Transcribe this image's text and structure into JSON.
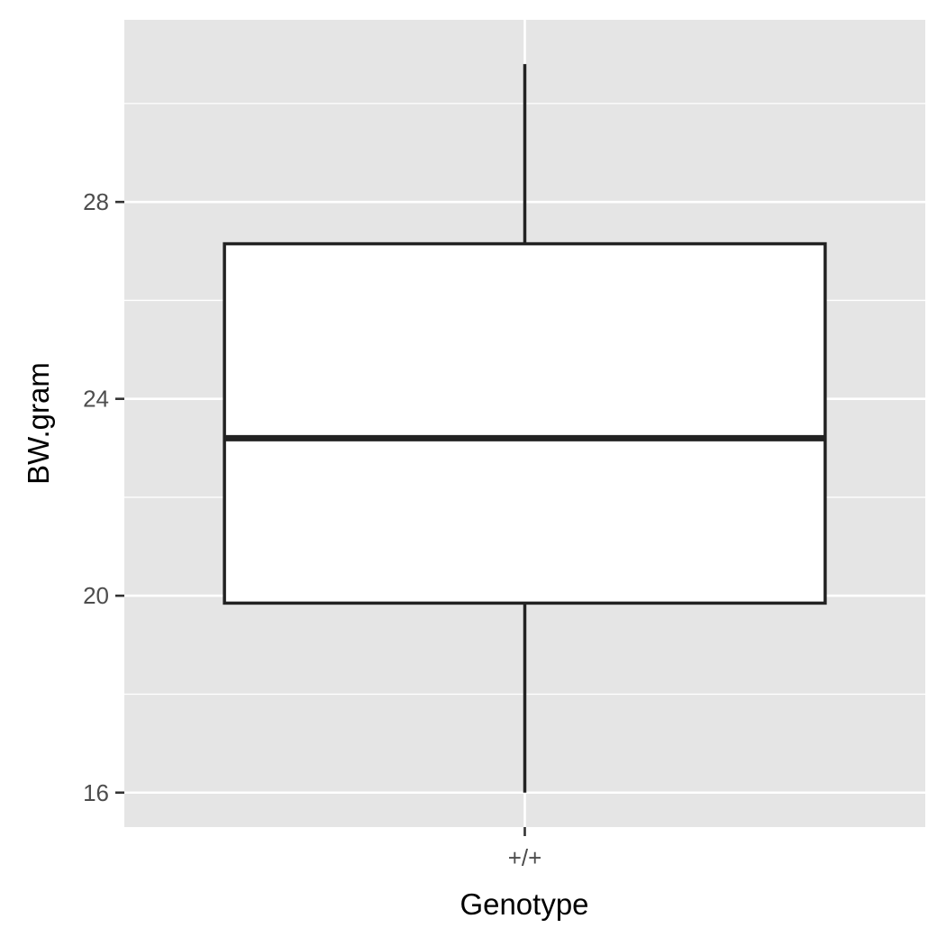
{
  "chart_data": {
    "type": "box",
    "title": "",
    "xlabel": "Genotype",
    "ylabel": "BW.gram",
    "categories": [
      "+/+"
    ],
    "boxes": [
      {
        "category": "+/+",
        "min": 16.0,
        "q1": 19.85,
        "median": 23.2,
        "q3": 27.15,
        "max": 30.8
      }
    ],
    "y_ticks": [
      16,
      20,
      24,
      28
    ],
    "y_tick_labels": [
      "16",
      "20",
      "24",
      "28"
    ],
    "ylim": [
      15.3,
      31.7
    ],
    "grid": true,
    "colors": {
      "panel_background": "#e5e5e5",
      "grid_line": "#ffffff",
      "box_fill": "#ffffff",
      "box_stroke": "#222222",
      "tick_mark": "#333333",
      "tick_text": "#4d4d4d"
    }
  }
}
